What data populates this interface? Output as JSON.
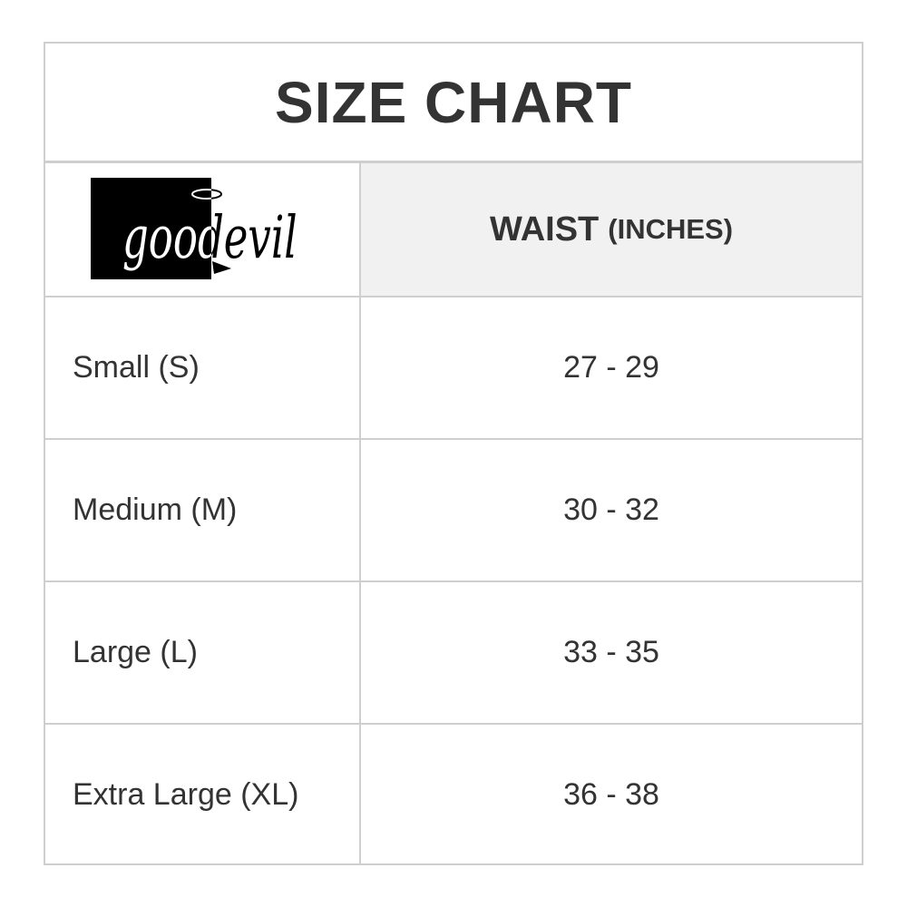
{
  "title": "SIZE CHART",
  "logo": {
    "text": "goodevil"
  },
  "header": {
    "measure": "WAIST",
    "unit": "(INCHES)"
  },
  "rows": [
    {
      "size": "Small (S)",
      "waist": "27 - 29"
    },
    {
      "size": "Medium (M)",
      "waist": "30 - 32"
    },
    {
      "size": "Large (L)",
      "waist": "33 - 35"
    },
    {
      "size": "Extra Large (XL)",
      "waist": "36 - 38"
    }
  ]
}
